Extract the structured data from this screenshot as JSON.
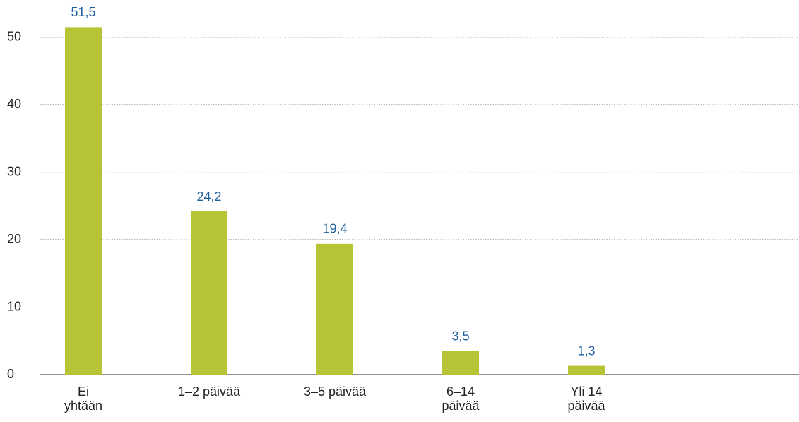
{
  "chart_data": {
    "type": "bar",
    "categories": [
      "Ei\nyhtään",
      "1–2 päivää",
      "3–5 päivää",
      "6–14\npäivää",
      "Yli 14\npäivää"
    ],
    "values": [
      51.5,
      24.2,
      19.4,
      3.5,
      1.3
    ],
    "value_labels": [
      "51,5",
      "24,2",
      "19,4",
      "3,5",
      "1,3"
    ],
    "color": "#b5c334",
    "label_color": "#1f5f9f",
    "ylim": [
      0,
      55
    ],
    "yticks": [
      0,
      10,
      20,
      30,
      40,
      50
    ],
    "grid": true
  }
}
